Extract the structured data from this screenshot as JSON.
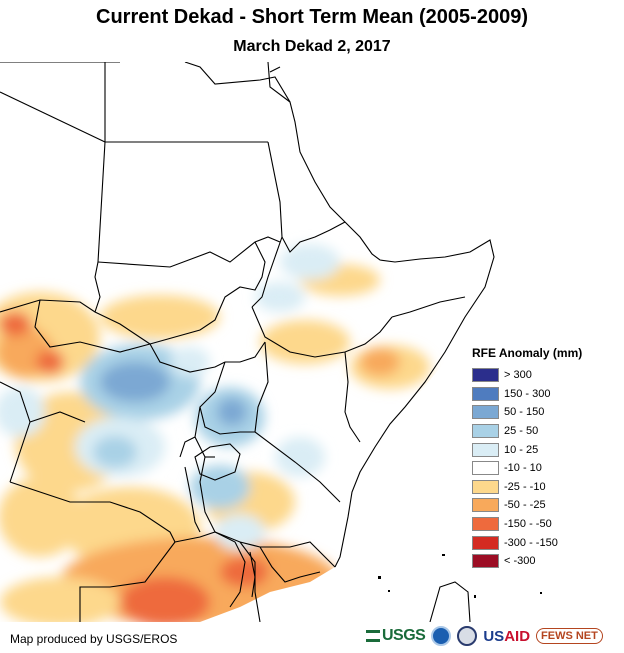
{
  "header": {
    "title": "Current Dekad - Short Term Mean (2005-2009)",
    "subtitle": "March Dekad 2, 2017"
  },
  "legend": {
    "title": "RFE Anomaly (mm)",
    "items": [
      {
        "label": "> 300",
        "color": "#2b2e8c"
      },
      {
        "label": "150 - 300",
        "color": "#4f7cbf"
      },
      {
        "label": "50 - 150",
        "color": "#7ba8d3"
      },
      {
        "label": "25 - 50",
        "color": "#a9d1e6"
      },
      {
        "label": "10 - 25",
        "color": "#daedf5"
      },
      {
        "label": "-10 - 10",
        "color": "#ffffff"
      },
      {
        "label": "-25 - -10",
        "color": "#fdd88c"
      },
      {
        "label": "-50 - -25",
        "color": "#f8a95b"
      },
      {
        "label": "-150 - -50",
        "color": "#ee6a3d"
      },
      {
        "label": "-300 - -150",
        "color": "#d42b22"
      },
      {
        "label": "< -300",
        "color": "#9c0d24"
      }
    ]
  },
  "footer": {
    "credit": "Map produced by USGS/EROS",
    "logos": {
      "usgs": "USGS",
      "usaid_a": "US",
      "usaid_b": "AID",
      "fews": "FEWS NET"
    }
  }
}
